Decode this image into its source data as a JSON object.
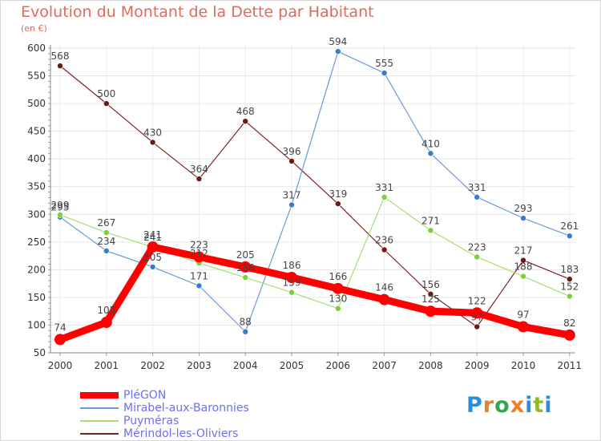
{
  "title": "Evolution du Montant de la Dette par Habitant",
  "subtitle": "(en €)",
  "logo": {
    "text": "Proxiti",
    "colors": [
      "#2a8fd8",
      "#e8812a",
      "#2fa84f",
      "#e8812a",
      "#2a8fd8",
      "#8fbc2e",
      "#2a8fd8"
    ]
  },
  "chart_data": {
    "type": "line",
    "title": "Evolution du Montant de la Dette par Habitant",
    "subtitle": "(en €)",
    "xlabel": "",
    "ylabel": "",
    "ylim": [
      50,
      600
    ],
    "yticks": [
      "50",
      "100",
      "150",
      "200",
      "250",
      "300",
      "350",
      "400",
      "450",
      "500",
      "550",
      "600"
    ],
    "categories": [
      "2000",
      "2001",
      "2002",
      "2003",
      "2004",
      "2005",
      "2006",
      "2007",
      "2008",
      "2009",
      "2010",
      "2011"
    ],
    "legend_position": "bottom-left",
    "series": [
      {
        "name": "Mérindol-les-Oliviers",
        "color": "#7a2424",
        "marker": "#6b1818",
        "width": 1.2,
        "values": [
          568,
          500,
          430,
          364,
          468,
          396,
          319,
          236,
          156,
          97,
          217,
          183
        ],
        "labels": [
          "568",
          "500",
          "430",
          "364",
          "468",
          "396",
          "319",
          "236",
          "156",
          "97",
          "217",
          "183"
        ]
      },
      {
        "name": "Mirabel-aux-Baronnies",
        "color": "#6b9bd6",
        "marker": "#3b7bc8",
        "width": 1.2,
        "values": [
          295,
          234,
          205,
          171,
          88,
          317,
          594,
          555,
          410,
          331,
          293,
          261
        ],
        "labels": [
          "295",
          "234",
          "205",
          "171",
          "88",
          "317",
          "594",
          "555",
          "410",
          "331",
          "293",
          "261"
        ]
      },
      {
        "name": "Puyméras",
        "color": "#a6df6e",
        "marker": "#7bd03a",
        "width": 1.2,
        "values": [
          299,
          267,
          241,
          212,
          186,
          159,
          130,
          331,
          271,
          223,
          188,
          152
        ],
        "labels": [
          "299",
          "267",
          "241",
          "212",
          "186",
          "159",
          "130",
          "331",
          "271",
          "223",
          "188",
          "152"
        ]
      },
      {
        "name": "PléGON",
        "color": "#ff0000",
        "marker": "#ff0000",
        "width": 9,
        "values": [
          74,
          105,
          241,
          223,
          205,
          186,
          166,
          146,
          125,
          122,
          97,
          82
        ],
        "labels": [
          "74",
          "105",
          "241",
          "223",
          "205",
          "186",
          "166",
          "146",
          "125",
          "122",
          "97",
          "82"
        ]
      }
    ]
  },
  "legend": [
    {
      "name": "PléGON",
      "color": "#ff0000",
      "thickness": 8
    },
    {
      "name": "Mirabel-aux-Baronnies",
      "color": "#6b9bd6",
      "thickness": 2
    },
    {
      "name": "Puyméras",
      "color": "#a6df6e",
      "thickness": 2
    },
    {
      "name": "Mérindol-les-Oliviers",
      "color": "#7a2424",
      "thickness": 2
    }
  ]
}
